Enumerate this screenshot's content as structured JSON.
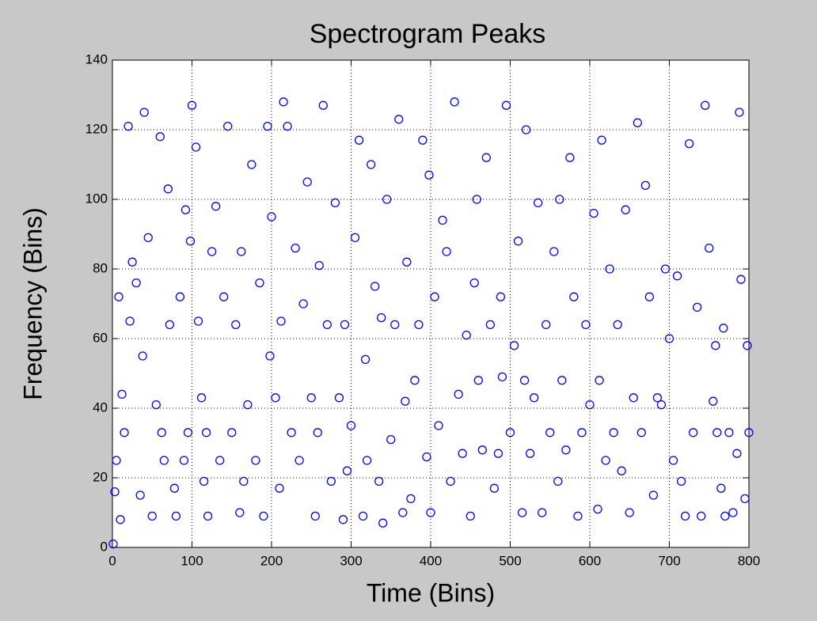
{
  "chart_data": {
    "type": "scatter",
    "title": "Spectrogram Peaks",
    "x_label": "Time (Bins)",
    "y_label": "Frequency (Bins)",
    "x": [
      1,
      3,
      5,
      8,
      10,
      12,
      15,
      20,
      22,
      25,
      30,
      35,
      38,
      40,
      45,
      50,
      55,
      60,
      62,
      65,
      70,
      72,
      78,
      80,
      85,
      90,
      92,
      95,
      98,
      100,
      105,
      108,
      112,
      115,
      118,
      120,
      125,
      130,
      135,
      140,
      145,
      150,
      155,
      160,
      162,
      165,
      170,
      175,
      180,
      185,
      190,
      195,
      198,
      200,
      205,
      210,
      212,
      215,
      220,
      225,
      230,
      235,
      240,
      245,
      250,
      255,
      258,
      260,
      265,
      270,
      275,
      280,
      285,
      290,
      292,
      295,
      300,
      305,
      310,
      315,
      318,
      320,
      325,
      330,
      335,
      338,
      340,
      345,
      350,
      355,
      360,
      365,
      368,
      370,
      375,
      380,
      385,
      390,
      395,
      398,
      400,
      405,
      410,
      415,
      420,
      425,
      430,
      435,
      440,
      445,
      450,
      455,
      458,
      460,
      465,
      470,
      475,
      480,
      485,
      488,
      490,
      495,
      500,
      505,
      510,
      515,
      518,
      520,
      525,
      530,
      535,
      540,
      545,
      550,
      555,
      560,
      562,
      565,
      570,
      575,
      580,
      585,
      590,
      595,
      600,
      605,
      610,
      612,
      615,
      620,
      625,
      630,
      635,
      640,
      645,
      650,
      655,
      660,
      665,
      670,
      675,
      680,
      685,
      690,
      695,
      700,
      705,
      710,
      715,
      720,
      725,
      730,
      735,
      740,
      745,
      750,
      755,
      758,
      760,
      765,
      768,
      770,
      775,
      780,
      785,
      788,
      790,
      795,
      798,
      800
    ],
    "y": [
      1,
      16,
      25,
      72,
      8,
      44,
      33,
      121,
      65,
      82,
      76,
      15,
      55,
      125,
      89,
      9,
      41,
      118,
      33,
      25,
      103,
      64,
      17,
      9,
      72,
      25,
      97,
      33,
      88,
      127,
      115,
      65,
      43,
      19,
      33,
      9,
      85,
      98,
      25,
      72,
      121,
      33,
      64,
      10,
      85,
      19,
      41,
      110,
      25,
      76,
      9,
      121,
      55,
      95,
      43,
      17,
      65,
      128,
      121,
      33,
      86,
      25,
      70,
      105,
      43,
      9,
      33,
      81,
      127,
      64,
      19,
      99,
      43,
      8,
      64,
      22,
      35,
      89,
      117,
      9,
      54,
      25,
      110,
      75,
      19,
      66,
      7,
      100,
      31,
      64,
      123,
      10,
      42,
      82,
      14,
      48,
      64,
      117,
      26,
      107,
      10,
      72,
      35,
      94,
      85,
      19,
      128,
      44,
      27,
      61,
      9,
      76,
      100,
      48,
      28,
      112,
      64,
      17,
      27,
      72,
      49,
      127,
      33,
      58,
      88,
      10,
      48,
      120,
      27,
      43,
      99,
      10,
      64,
      33,
      85,
      19,
      100,
      48,
      28,
      112,
      72,
      9,
      33,
      64,
      41,
      96,
      11,
      48,
      117,
      25,
      80,
      33,
      64,
      22,
      97,
      10,
      43,
      122,
      33,
      104,
      72,
      15,
      43,
      41,
      80,
      60,
      25,
      78,
      19,
      9,
      116,
      33,
      69,
      9,
      127,
      86,
      42,
      58,
      33,
      17,
      63,
      9,
      33,
      10,
      27,
      125,
      77,
      14,
      58,
      33
    ],
    "color": "#0000ff",
    "xlim": [
      0,
      800
    ],
    "ylim": [
      0,
      140
    ],
    "xticks": [
      0,
      100,
      200,
      300,
      400,
      500,
      600,
      700,
      800
    ],
    "yticks": [
      0,
      20,
      40,
      60,
      80,
      100,
      120,
      140
    ],
    "grid": true
  }
}
